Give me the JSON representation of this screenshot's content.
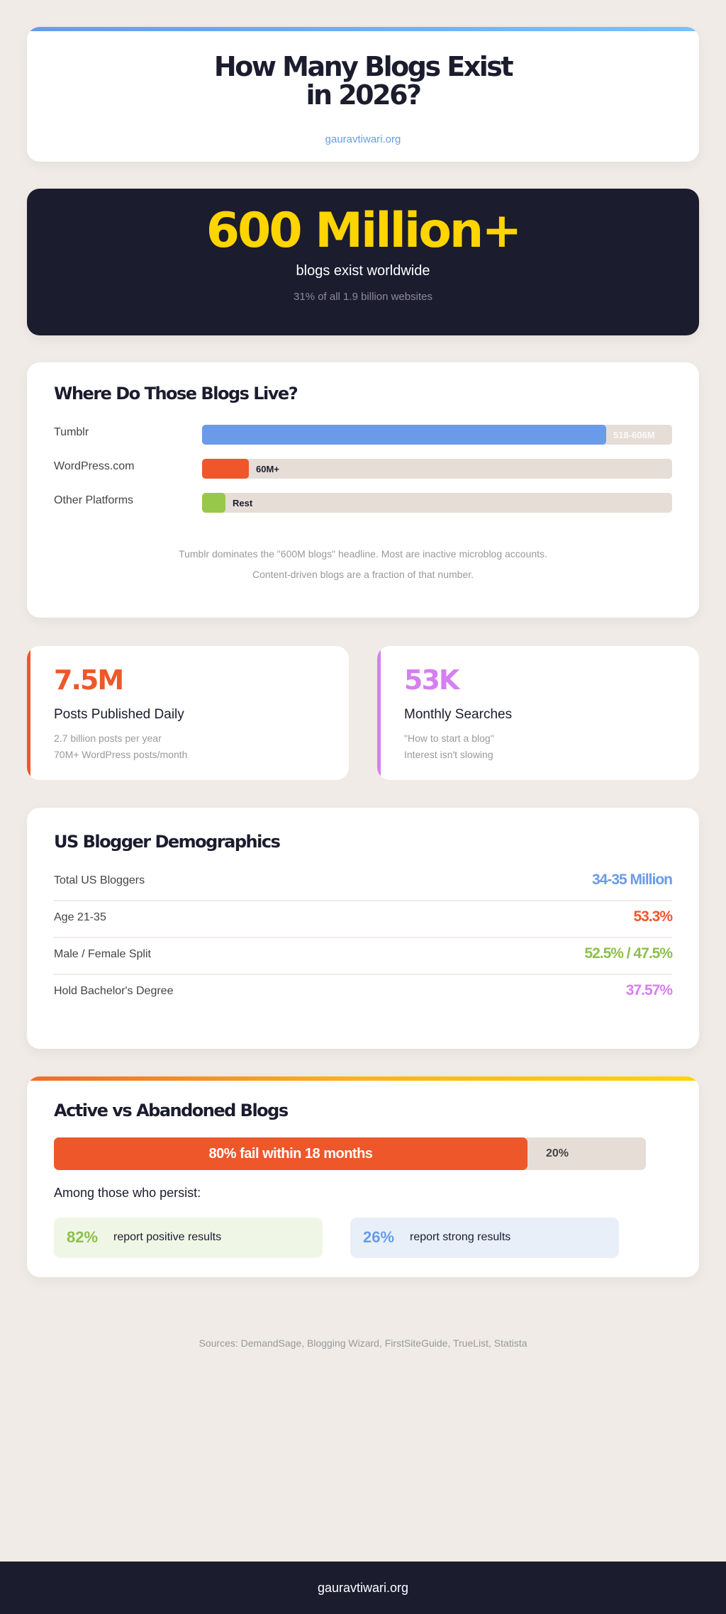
{
  "header": {
    "title_line1": "How Many Blogs Exist",
    "title_line2": "in 2026?",
    "domain": "gauravtiwari.org"
  },
  "hero": {
    "number": "600 Million+",
    "label": "blogs exist worldwide",
    "sub": "31% of all 1.9 billion websites"
  },
  "platforms": {
    "title": "Where Do Those Blogs Live?",
    "items": [
      {
        "label": "Tumblr",
        "value": "518-606M",
        "share": 0.86,
        "color": "#6a9be8"
      },
      {
        "label": "WordPress.com",
        "value": "60M+",
        "share": 0.1,
        "color": "#ee572a"
      },
      {
        "label": "Other Platforms",
        "value": "Rest",
        "share": 0.05,
        "color": "#98c84a"
      }
    ],
    "note1": "Tumblr dominates the \"600M blogs\" headline. Most are inactive microblog accounts.",
    "note2": "Content-driven blogs are a fraction of that number."
  },
  "stats": [
    {
      "number": "7.5M",
      "label": "Posts Published Daily",
      "sub1": "2.7 billion posts per year",
      "sub2": "70M+ WordPress posts/month",
      "color": "#ee572a"
    },
    {
      "number": "53K",
      "label": "Monthly Searches",
      "sub1": "\"How to start a blog\"",
      "sub2": "Interest isn't slowing",
      "color": "#d67ff0"
    }
  ],
  "demographics": {
    "title": "US Blogger Demographics",
    "rows": [
      {
        "label": "Total US Bloggers",
        "value": "34-35 Million",
        "color": "#6a9be8"
      },
      {
        "label": "Age 21-35",
        "value": "53.3%",
        "color": "#ee572a"
      },
      {
        "label": "Male / Female Split",
        "value": "52.5% / 47.5%",
        "color": "#98c84a"
      },
      {
        "label": "Hold Bachelor's Degree",
        "value": "37.57%",
        "color": "#d67ff0"
      }
    ]
  },
  "active": {
    "title": "Active vs Abandoned Blogs",
    "fail_label": "80% fail within 18 months",
    "fail_pct": 80,
    "rest_label": "20%",
    "persist_label": "Among those who persist:",
    "boxes": [
      {
        "pct": "82%",
        "text": "report positive results",
        "color": "#8dc04a",
        "bg": "#f0f6e6"
      },
      {
        "pct": "26%",
        "text": "report strong results",
        "color": "#6a9be8",
        "bg": "#e8eff9"
      }
    ]
  },
  "sources": "Sources: DemandSage, Blogging Wizard, FirstSiteGuide, TrueList, Statista",
  "footer": "gauravtiwari.org"
}
